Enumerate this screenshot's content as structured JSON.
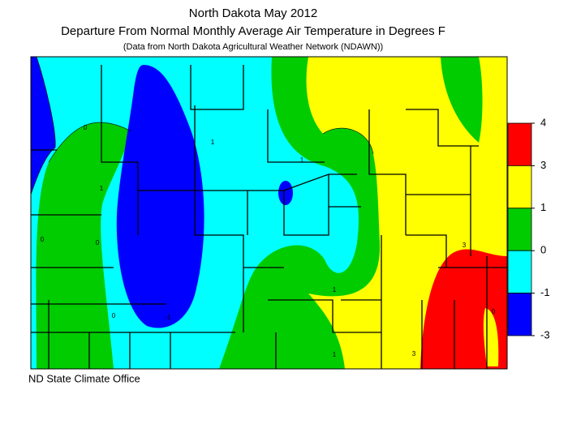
{
  "map": {
    "title": "North Dakota May 2012",
    "subtitle": "Departure From Normal Monthly Average Air Temperature in Degrees F",
    "source_note": "(Data from North Dakota Agricultural Weather Network (NDAWN))",
    "credit": "ND State Climate Office",
    "legend": {
      "ticks": [
        4,
        3,
        1,
        0,
        -1,
        -3
      ],
      "colors": [
        "#ff0000",
        "#ffff00",
        "#00cc00",
        "#00ffff",
        "#0000ff"
      ]
    },
    "contour_labels": [
      "0",
      "1",
      "1",
      "0",
      "0",
      "-1",
      "1",
      "0",
      "1",
      "1",
      "3",
      "3",
      "0"
    ]
  }
}
